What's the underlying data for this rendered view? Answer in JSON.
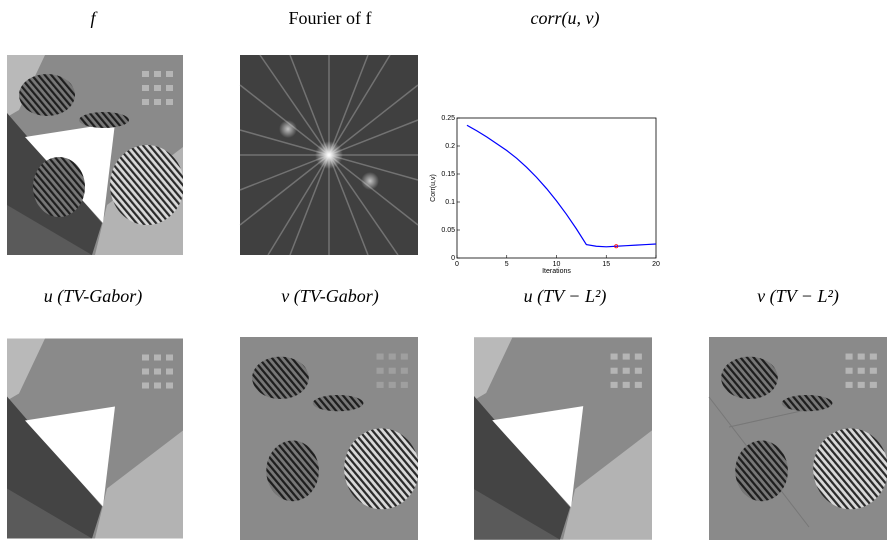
{
  "panels": {
    "titles": [
      "f",
      "Fourier of f",
      "corr(u, v)",
      "u (TV-Gabor)",
      "v (TV-Gabor)",
      "u (TV − L²)",
      "v (TV − L²)"
    ]
  },
  "chart_data": {
    "type": "line",
    "xlabel": "Iterations",
    "ylabel": "Corr(u,v)",
    "x": [
      1,
      2,
      3,
      4,
      5,
      6,
      7,
      8,
      9,
      10,
      11,
      12,
      13,
      14,
      15,
      16,
      17,
      18,
      19,
      20
    ],
    "values": [
      0.237,
      0.227,
      0.216,
      0.204,
      0.192,
      0.178,
      0.162,
      0.144,
      0.124,
      0.102,
      0.078,
      0.052,
      0.024,
      0.021,
      0.02,
      0.021,
      0.022,
      0.023,
      0.024,
      0.025
    ],
    "color": "#0000ff",
    "highlight": {
      "x": 16,
      "y": 0.021,
      "color": "#ff0000"
    },
    "xlim": [
      0,
      20
    ],
    "ylim": [
      0,
      0.25
    ],
    "xticks": [
      0,
      5,
      10,
      15,
      20
    ],
    "yticks": [
      0,
      0.05,
      0.1,
      0.15,
      0.2,
      0.25
    ]
  }
}
